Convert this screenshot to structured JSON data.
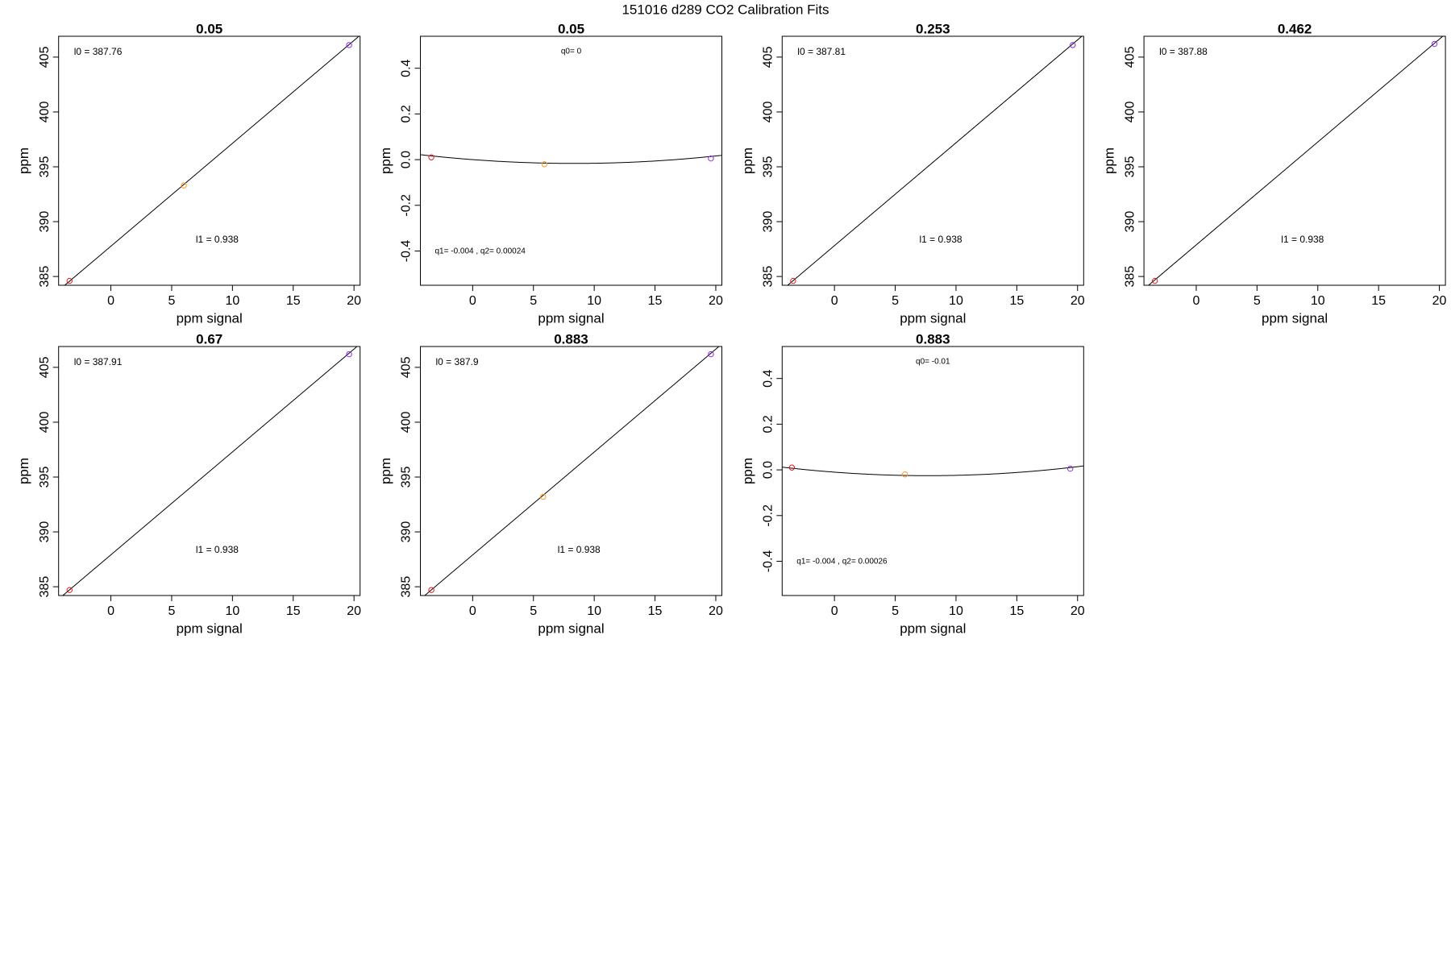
{
  "title": "151016   d289   CO2 Calibration Fits",
  "chart_data": [
    {
      "type": "scatter",
      "title": "0.05",
      "x_label": "ppm signal",
      "y_label": "ppm",
      "x": [
        -3.4,
        6,
        19.6
      ],
      "y": [
        384.6,
        393.3,
        406.1
      ],
      "colors": [
        "#e41a1c",
        "#ff9a1f",
        "#8a2be2"
      ],
      "xlim": [
        -4.3,
        20.5
      ],
      "ylim": [
        384.2,
        406.9
      ],
      "xticks": [
        0,
        5,
        10,
        15,
        20
      ],
      "yticks": [
        385,
        390,
        395,
        400,
        405
      ],
      "fit": {
        "coefficients": [
          387.76,
          0.938
        ],
        "labels": [
          "l0 =  387.76",
          "l1 =  0.938"
        ]
      }
    },
    {
      "type": "scatter",
      "title": "0.05",
      "x_label": "ppm signal",
      "y_label": "ppm",
      "x": [
        -3.4,
        5.9,
        19.6
      ],
      "y": [
        0.01,
        -0.02,
        0.005
      ],
      "colors": [
        "#e41a1c",
        "#ff9a1f",
        "#8a2be2"
      ],
      "xlim": [
        -4.3,
        20.5
      ],
      "ylim": [
        -0.55,
        0.54
      ],
      "xticks": [
        0,
        5,
        10,
        15,
        20
      ],
      "yticks": [
        -0.4,
        -0.2,
        {
          "value": 0,
          "label": "0.0"
        },
        0.2,
        0.4
      ],
      "fit": {
        "coefficients": [
          0,
          -0.004,
          0.00024
        ],
        "labels": [
          "q0= 0",
          "q1= -0.004 , q2= 0.00024"
        ]
      }
    },
    {
      "type": "scatter",
      "title": "0.253",
      "x_label": "ppm signal",
      "y_label": "ppm",
      "x": [
        -3.4,
        19.6
      ],
      "y": [
        384.6,
        406.1
      ],
      "colors": [
        "#e41a1c",
        "#8a2be2"
      ],
      "xlim": [
        -4.3,
        20.5
      ],
      "ylim": [
        384.2,
        406.9
      ],
      "xticks": [
        0,
        5,
        10,
        15,
        20
      ],
      "yticks": [
        385,
        390,
        395,
        400,
        405
      ],
      "fit": {
        "coefficients": [
          387.81,
          0.938
        ],
        "labels": [
          "l0 =  387.81",
          "l1 =  0.938"
        ]
      }
    },
    {
      "type": "scatter",
      "title": "0.462",
      "x_label": "ppm signal",
      "y_label": "ppm",
      "x": [
        -3.4,
        19.6
      ],
      "y": [
        384.6,
        406.2
      ],
      "colors": [
        "#e41a1c",
        "#8a2be2"
      ],
      "xlim": [
        -4.3,
        20.5
      ],
      "ylim": [
        384.2,
        406.9
      ],
      "xticks": [
        0,
        5,
        10,
        15,
        20
      ],
      "yticks": [
        385,
        390,
        395,
        400,
        405
      ],
      "fit": {
        "coefficients": [
          387.88,
          0.938
        ],
        "labels": [
          "l0 =  387.88",
          "l1 =  0.938"
        ]
      }
    },
    {
      "type": "scatter",
      "title": "0.67",
      "x_label": "ppm signal",
      "y_label": "ppm",
      "x": [
        -3.4,
        19.6
      ],
      "y": [
        384.7,
        406.2
      ],
      "colors": [
        "#e41a1c",
        "#8a2be2"
      ],
      "xlim": [
        -4.3,
        20.5
      ],
      "ylim": [
        384.2,
        406.9
      ],
      "xticks": [
        0,
        5,
        10,
        15,
        20
      ],
      "yticks": [
        385,
        390,
        395,
        400,
        405
      ],
      "fit": {
        "coefficients": [
          387.91,
          0.938
        ],
        "labels": [
          "l0 =  387.91",
          "l1 =  0.938"
        ]
      }
    },
    {
      "type": "scatter",
      "title": "0.883",
      "x_label": "ppm signal",
      "y_label": "ppm",
      "x": [
        -3.4,
        5.8,
        19.6
      ],
      "y": [
        384.7,
        393.2,
        406.2
      ],
      "colors": [
        "#e41a1c",
        "#ff9a1f",
        "#8a2be2"
      ],
      "xlim": [
        -4.3,
        20.5
      ],
      "ylim": [
        384.2,
        406.9
      ],
      "xticks": [
        0,
        5,
        10,
        15,
        20
      ],
      "yticks": [
        385,
        390,
        395,
        400,
        405
      ],
      "fit": {
        "coefficients": [
          387.9,
          0.938
        ],
        "labels": [
          "l0 =  387.9",
          "l1 =  0.938"
        ]
      }
    },
    {
      "type": "scatter",
      "title": "0.883",
      "x_label": "ppm signal",
      "y_label": "ppm",
      "x": [
        -3.5,
        5.8,
        19.4
      ],
      "y": [
        0.01,
        -0.02,
        0.005
      ],
      "colors": [
        "#e41a1c",
        "#ff9a1f",
        "#8a2be2"
      ],
      "xlim": [
        -4.3,
        20.5
      ],
      "ylim": [
        -0.55,
        0.54
      ],
      "xticks": [
        0,
        5,
        10,
        15,
        20
      ],
      "yticks": [
        -0.4,
        -0.2,
        {
          "value": 0,
          "label": "0.0"
        },
        0.2,
        0.4
      ],
      "fit": {
        "coefficients": [
          -0.01,
          -0.004,
          0.00026
        ],
        "labels": [
          "q0= -0.01",
          "q1= -0.004 , q2= 0.00026"
        ]
      }
    }
  ]
}
